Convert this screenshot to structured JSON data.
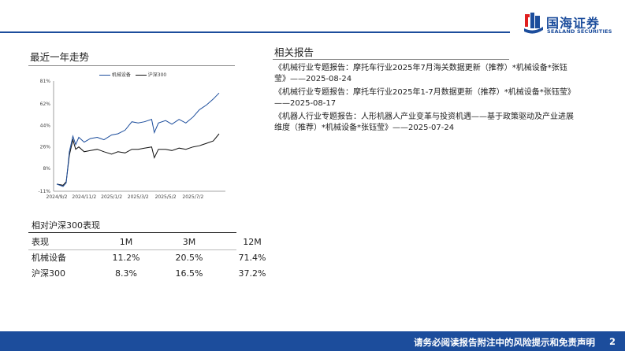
{
  "brand": {
    "cn": "国海证券",
    "en": "SEALAND SECURITIES"
  },
  "trend": {
    "title": "最近一年走势"
  },
  "related": {
    "title": "相关报告",
    "items": [
      "《机械行业专题报告：摩托车行业2025年7月海关数据更新（推荐）*机械设备*张钰莹》——2025-08-24",
      "《机械行业专题报告：摩托车行业2025年1-7月数据更新（推荐）*机械设备*张钰莹》——2025-08-17",
      "《机器人行业专题报告：人形机器人产业变革与投资机遇——基于政策驱动及产业进展维度（推荐）*机械设备*张钰莹》——2025-07-24"
    ]
  },
  "perf": {
    "title": "相对沪深300表现",
    "headers": [
      "表现",
      "1M",
      "3M",
      "12M"
    ],
    "rows": [
      [
        "机械设备",
        "11.2%",
        "20.5%",
        "71.4%"
      ],
      [
        "沪深300",
        "8.3%",
        "16.5%",
        "37.2%"
      ]
    ]
  },
  "footer": {
    "disclaimer": "请务必阅读报告附注中的风险提示和免责声明",
    "page": "2"
  },
  "chart_data": {
    "type": "line",
    "title": "",
    "xlabel": "",
    "ylabel": "",
    "ylim": [
      -11,
      81
    ],
    "yticks": [
      "81%",
      "62%",
      "44%",
      "26%",
      "8%",
      "-11%"
    ],
    "xticks": [
      "2024/9/2",
      "2024/11/2",
      "2025/1/2",
      "2025/3/2",
      "2025/5/2",
      "2025/7/2"
    ],
    "x": [
      "2024/9/2",
      "2024/9/16",
      "2024/9/23",
      "2024/9/30",
      "2024/10/8",
      "2024/10/14",
      "2024/10/21",
      "2024/11/2",
      "2024/11/16",
      "2024/12/1",
      "2024/12/16",
      "2025/1/2",
      "2025/1/16",
      "2025/2/1",
      "2025/2/16",
      "2025/3/2",
      "2025/3/16",
      "2025/4/1",
      "2025/4/7",
      "2025/4/16",
      "2025/5/2",
      "2025/5/16",
      "2025/6/1",
      "2025/6/16",
      "2025/7/2",
      "2025/7/16",
      "2025/8/1",
      "2025/8/16",
      "2025/8/29"
    ],
    "series": [
      {
        "name": "机械设备",
        "color": "#1c4d9c",
        "values": [
          -5,
          -7,
          -4,
          22,
          35,
          28,
          34,
          30,
          33,
          34,
          32,
          36,
          37,
          40,
          47,
          46,
          47,
          49,
          38,
          46,
          48,
          45,
          49,
          46,
          51,
          57,
          61,
          66,
          71
        ]
      },
      {
        "name": "沪深300",
        "color": "#111111",
        "values": [
          -5,
          -6,
          -3,
          19,
          32,
          24,
          26,
          22,
          23,
          24,
          22,
          20,
          22,
          21,
          24,
          24,
          25,
          26,
          17,
          24,
          24,
          23,
          25,
          24,
          26,
          27,
          29,
          31,
          37
        ]
      }
    ]
  }
}
